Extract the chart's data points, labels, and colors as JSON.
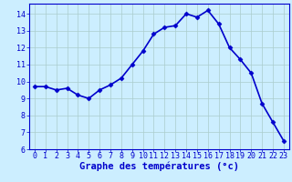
{
  "x": [
    0,
    1,
    2,
    3,
    4,
    5,
    6,
    7,
    8,
    9,
    10,
    11,
    12,
    13,
    14,
    15,
    16,
    17,
    18,
    19,
    20,
    21,
    22,
    23
  ],
  "y": [
    9.7,
    9.7,
    9.5,
    9.6,
    9.2,
    9.0,
    9.5,
    9.8,
    10.2,
    11.0,
    11.8,
    12.8,
    13.2,
    13.3,
    14.0,
    13.8,
    14.2,
    13.4,
    12.0,
    11.3,
    10.5,
    8.7,
    7.6,
    6.5
  ],
  "line_color": "#0000cc",
  "marker": "D",
  "marker_size": 2.5,
  "background_color": "#cceeff",
  "grid_color": "#aacccc",
  "xlabel": "Graphe des températures (°c)",
  "xlabel_color": "#0000cc",
  "tick_label_color": "#0000cc",
  "xlim": [
    -0.5,
    23.5
  ],
  "ylim": [
    6,
    14.6
  ],
  "yticks": [
    6,
    7,
    8,
    9,
    10,
    11,
    12,
    13,
    14
  ],
  "xticks": [
    0,
    1,
    2,
    3,
    4,
    5,
    6,
    7,
    8,
    9,
    10,
    11,
    12,
    13,
    14,
    15,
    16,
    17,
    18,
    19,
    20,
    21,
    22,
    23
  ],
  "axis_label_fontsize": 7.5,
  "tick_fontsize": 6,
  "line_width": 1.2
}
